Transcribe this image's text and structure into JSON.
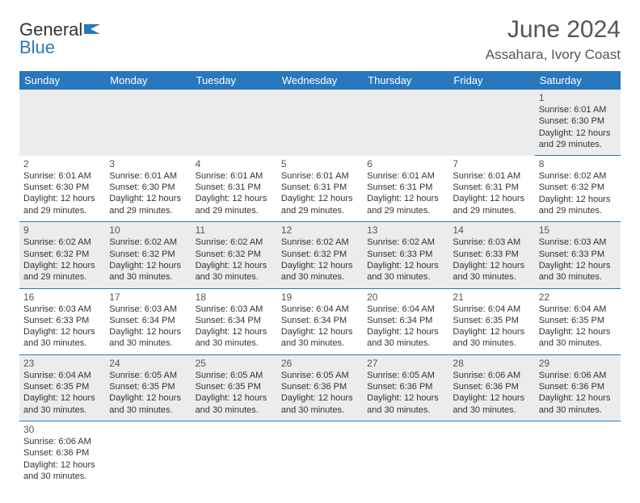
{
  "logo": {
    "word1": "General",
    "word2": "Blue"
  },
  "title": "June 2024",
  "location": "Assahara, Ivory Coast",
  "colors": {
    "header_bg": "#2978bd",
    "header_text": "#ffffff",
    "row_odd_bg": "#ececec",
    "row_even_bg": "#ffffff",
    "text": "#333333",
    "title_text": "#555555"
  },
  "typography": {
    "title_fontsize": 30,
    "location_fontsize": 17,
    "weekday_fontsize": 13,
    "daynum_fontsize": 12,
    "body_fontsize": 11
  },
  "weekdays": [
    "Sunday",
    "Monday",
    "Tuesday",
    "Wednesday",
    "Thursday",
    "Friday",
    "Saturday"
  ],
  "layout": {
    "columns": 7,
    "rows": 6,
    "first_day_column": 6
  },
  "days": [
    {
      "n": "1",
      "sunrise": "6:01 AM",
      "sunset": "6:30 PM",
      "daylight": "12 hours and 29 minutes."
    },
    {
      "n": "2",
      "sunrise": "6:01 AM",
      "sunset": "6:30 PM",
      "daylight": "12 hours and 29 minutes."
    },
    {
      "n": "3",
      "sunrise": "6:01 AM",
      "sunset": "6:30 PM",
      "daylight": "12 hours and 29 minutes."
    },
    {
      "n": "4",
      "sunrise": "6:01 AM",
      "sunset": "6:31 PM",
      "daylight": "12 hours and 29 minutes."
    },
    {
      "n": "5",
      "sunrise": "6:01 AM",
      "sunset": "6:31 PM",
      "daylight": "12 hours and 29 minutes."
    },
    {
      "n": "6",
      "sunrise": "6:01 AM",
      "sunset": "6:31 PM",
      "daylight": "12 hours and 29 minutes."
    },
    {
      "n": "7",
      "sunrise": "6:01 AM",
      "sunset": "6:31 PM",
      "daylight": "12 hours and 29 minutes."
    },
    {
      "n": "8",
      "sunrise": "6:02 AM",
      "sunset": "6:32 PM",
      "daylight": "12 hours and 29 minutes."
    },
    {
      "n": "9",
      "sunrise": "6:02 AM",
      "sunset": "6:32 PM",
      "daylight": "12 hours and 29 minutes."
    },
    {
      "n": "10",
      "sunrise": "6:02 AM",
      "sunset": "6:32 PM",
      "daylight": "12 hours and 30 minutes."
    },
    {
      "n": "11",
      "sunrise": "6:02 AM",
      "sunset": "6:32 PM",
      "daylight": "12 hours and 30 minutes."
    },
    {
      "n": "12",
      "sunrise": "6:02 AM",
      "sunset": "6:32 PM",
      "daylight": "12 hours and 30 minutes."
    },
    {
      "n": "13",
      "sunrise": "6:02 AM",
      "sunset": "6:33 PM",
      "daylight": "12 hours and 30 minutes."
    },
    {
      "n": "14",
      "sunrise": "6:03 AM",
      "sunset": "6:33 PM",
      "daylight": "12 hours and 30 minutes."
    },
    {
      "n": "15",
      "sunrise": "6:03 AM",
      "sunset": "6:33 PM",
      "daylight": "12 hours and 30 minutes."
    },
    {
      "n": "16",
      "sunrise": "6:03 AM",
      "sunset": "6:33 PM",
      "daylight": "12 hours and 30 minutes."
    },
    {
      "n": "17",
      "sunrise": "6:03 AM",
      "sunset": "6:34 PM",
      "daylight": "12 hours and 30 minutes."
    },
    {
      "n": "18",
      "sunrise": "6:03 AM",
      "sunset": "6:34 PM",
      "daylight": "12 hours and 30 minutes."
    },
    {
      "n": "19",
      "sunrise": "6:04 AM",
      "sunset": "6:34 PM",
      "daylight": "12 hours and 30 minutes."
    },
    {
      "n": "20",
      "sunrise": "6:04 AM",
      "sunset": "6:34 PM",
      "daylight": "12 hours and 30 minutes."
    },
    {
      "n": "21",
      "sunrise": "6:04 AM",
      "sunset": "6:35 PM",
      "daylight": "12 hours and 30 minutes."
    },
    {
      "n": "22",
      "sunrise": "6:04 AM",
      "sunset": "6:35 PM",
      "daylight": "12 hours and 30 minutes."
    },
    {
      "n": "23",
      "sunrise": "6:04 AM",
      "sunset": "6:35 PM",
      "daylight": "12 hours and 30 minutes."
    },
    {
      "n": "24",
      "sunrise": "6:05 AM",
      "sunset": "6:35 PM",
      "daylight": "12 hours and 30 minutes."
    },
    {
      "n": "25",
      "sunrise": "6:05 AM",
      "sunset": "6:35 PM",
      "daylight": "12 hours and 30 minutes."
    },
    {
      "n": "26",
      "sunrise": "6:05 AM",
      "sunset": "6:36 PM",
      "daylight": "12 hours and 30 minutes."
    },
    {
      "n": "27",
      "sunrise": "6:05 AM",
      "sunset": "6:36 PM",
      "daylight": "12 hours and 30 minutes."
    },
    {
      "n": "28",
      "sunrise": "6:06 AM",
      "sunset": "6:36 PM",
      "daylight": "12 hours and 30 minutes."
    },
    {
      "n": "29",
      "sunrise": "6:06 AM",
      "sunset": "6:36 PM",
      "daylight": "12 hours and 30 minutes."
    },
    {
      "n": "30",
      "sunrise": "6:06 AM",
      "sunset": "6:36 PM",
      "daylight": "12 hours and 30 minutes."
    }
  ],
  "labels": {
    "sunrise": "Sunrise:",
    "sunset": "Sunset:",
    "daylight": "Daylight:"
  }
}
